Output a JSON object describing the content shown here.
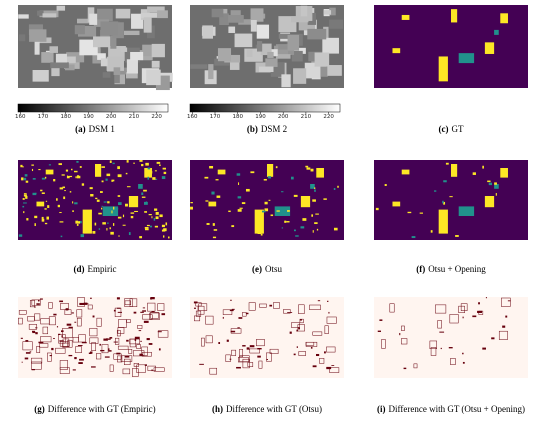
{
  "panels": [
    {
      "label": "(a)",
      "caption": "DSM 1"
    },
    {
      "label": "(b)",
      "caption": "DSM 2"
    },
    {
      "label": "(c)",
      "caption": "GT"
    },
    {
      "label": "(d)",
      "caption": "Empiric"
    },
    {
      "label": "(e)",
      "caption": "Otsu"
    },
    {
      "label": "(f)",
      "caption": "Otsu + Opening"
    },
    {
      "label": "(g)",
      "caption": "Difference with GT (Empiric)"
    },
    {
      "label": "(h)",
      "caption": "Difference with GT (Otsu)"
    },
    {
      "label": "(i)",
      "caption": "Difference with GT (Otsu + Opening)"
    }
  ],
  "colorbars": [
    {
      "lim": [
        159,
        225
      ],
      "ticks": [
        160,
        170,
        180,
        190,
        200,
        210,
        220
      ]
    },
    {
      "lim": [
        159,
        225
      ],
      "ticks": [
        160,
        170,
        180,
        190,
        200,
        210,
        220
      ]
    }
  ]
}
